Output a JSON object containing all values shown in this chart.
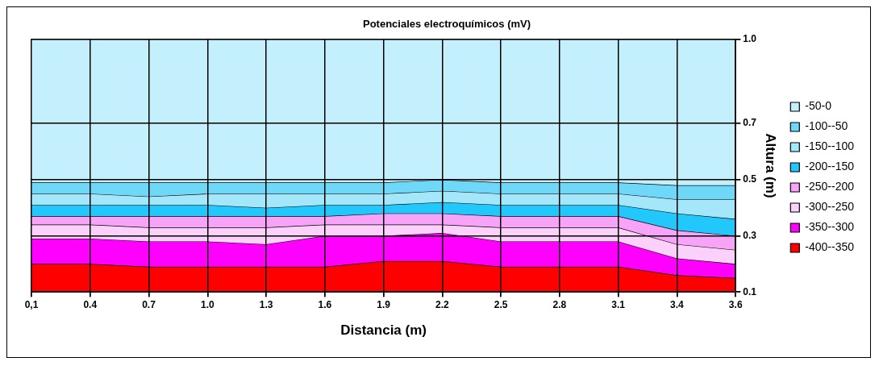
{
  "chart_data": {
    "type": "area",
    "title": "Potenciales electroquímicos (mV)",
    "xlabel": "Distancia (m)",
    "ylabel": "Altura (m)",
    "categories": [
      "0,1",
      "0.4",
      "0.7",
      "1.0",
      "1.3",
      "1.6",
      "1.9",
      "2.2",
      "2.5",
      "2.8",
      "3.1",
      "3.4",
      "3.6"
    ],
    "ylim": [
      0.1,
      1.0
    ],
    "yticks": [
      0.1,
      0.3,
      0.5,
      0.7,
      {
        "value": 1.0,
        "label": "1.0"
      }
    ],
    "grid": true,
    "legend": "right",
    "series": [
      {
        "name": "-50-0",
        "color": "#c4effc",
        "values": [
          1.0,
          1.0,
          1.0,
          1.0,
          1.0,
          1.0,
          1.0,
          1.0,
          1.0,
          1.0,
          1.0,
          1.0,
          1.0
        ]
      },
      {
        "name": "-100--50",
        "color": "#6fd8f8",
        "values": [
          0.49,
          0.49,
          0.49,
          0.49,
          0.49,
          0.49,
          0.49,
          0.5,
          0.49,
          0.49,
          0.49,
          0.48,
          0.48
        ]
      },
      {
        "name": "-150--100",
        "color": "#a5e7fa",
        "values": [
          0.45,
          0.45,
          0.44,
          0.45,
          0.45,
          0.45,
          0.45,
          0.46,
          0.45,
          0.45,
          0.45,
          0.43,
          0.43
        ]
      },
      {
        "name": "-200--150",
        "color": "#22c8fb",
        "values": [
          0.41,
          0.41,
          0.41,
          0.41,
          0.4,
          0.41,
          0.41,
          0.42,
          0.41,
          0.41,
          0.41,
          0.38,
          0.36
        ]
      },
      {
        "name": "-250--200",
        "color": "#f7a3f7",
        "values": [
          0.37,
          0.37,
          0.37,
          0.37,
          0.37,
          0.37,
          0.38,
          0.38,
          0.37,
          0.37,
          0.37,
          0.32,
          0.3
        ]
      },
      {
        "name": "-300--250",
        "color": "#fbd0fb",
        "values": [
          0.34,
          0.34,
          0.33,
          0.33,
          0.33,
          0.34,
          0.34,
          0.34,
          0.33,
          0.33,
          0.33,
          0.27,
          0.25
        ]
      },
      {
        "name": "-350--300",
        "color": "#ff00ff",
        "values": [
          0.29,
          0.29,
          0.28,
          0.28,
          0.27,
          0.3,
          0.3,
          0.31,
          0.28,
          0.28,
          0.28,
          0.22,
          0.2
        ]
      },
      {
        "name": "-400--350",
        "color": "#ff0000",
        "values": [
          0.2,
          0.2,
          0.19,
          0.19,
          0.19,
          0.19,
          0.21,
          0.21,
          0.19,
          0.19,
          0.19,
          0.16,
          0.15
        ]
      }
    ]
  }
}
